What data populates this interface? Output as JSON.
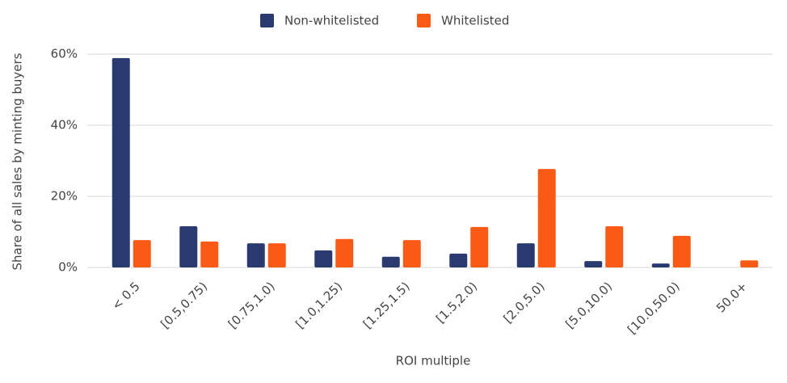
{
  "chart_data": {
    "type": "bar",
    "x_label": "ROI multiple",
    "y_label": "Share of all sales by minting buyers",
    "categories": [
      "< 0.5",
      "[0.5,0.75)",
      "[0.75,1.0)",
      "[1.0,1.25)",
      "[1.25,1.5)",
      "[1.5,2.0)",
      "[2.0,5.0)",
      "[5.0,10.0)",
      "[10.0,50.0)",
      "50.0+"
    ],
    "series": [
      {
        "name": "Non-whitelisted",
        "color": "#2b3a6e",
        "values": [
          58.9,
          11.6,
          6.8,
          4.8,
          3.0,
          3.9,
          6.8,
          1.8,
          1.1,
          0
        ]
      },
      {
        "name": "Whitelisted",
        "color": "#fa5a14",
        "values": [
          7.7,
          7.3,
          6.8,
          8.0,
          7.7,
          11.4,
          27.7,
          11.6,
          8.9,
          2.0
        ]
      }
    ],
    "ylim": [
      0,
      60
    ],
    "yticks": [
      {
        "value": 0,
        "label": "0%"
      },
      {
        "value": 20,
        "label": "20%"
      },
      {
        "value": 40,
        "label": "40%"
      },
      {
        "value": 60,
        "label": "60%"
      }
    ],
    "grid": true,
    "legend": "top"
  }
}
